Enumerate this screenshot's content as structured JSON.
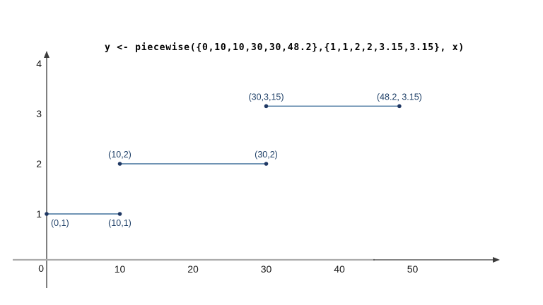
{
  "chart_data": {
    "type": "line",
    "subtype": "piecewise-constant-segments",
    "title": "y <- piecewise({0,10,10,30,30,48.2},{1,1,2,2,3.15,3.15}, x)",
    "xlabel": "",
    "ylabel": "",
    "xlim": [
      0,
      62
    ],
    "ylim": [
      0,
      4.3
    ],
    "grid": false,
    "legend": "none",
    "x_ticks": [
      0,
      10,
      20,
      30,
      40,
      50
    ],
    "y_ticks": [
      1,
      2,
      3,
      4
    ],
    "origin_tick_label": "0",
    "series": [
      {
        "name": "segment-1",
        "x": [
          0,
          10
        ],
        "y": [
          1,
          1
        ],
        "point_labels": [
          "(0,1)",
          "(10,1)"
        ],
        "label_position": "below"
      },
      {
        "name": "segment-2",
        "x": [
          10,
          30
        ],
        "y": [
          2,
          2
        ],
        "point_labels": [
          "(10,2)",
          "(30,2)"
        ],
        "label_position": "above"
      },
      {
        "name": "segment-3",
        "x": [
          30,
          48.2
        ],
        "y": [
          3.15,
          3.15
        ],
        "point_labels": [
          "(30,3,15)",
          "(48.2, 3.15)"
        ],
        "label_position": "above"
      }
    ],
    "colors": {
      "line": "#41719c",
      "point": "#1f3864",
      "point_label": "#1f4068",
      "axis_dark": "#3c3c3c",
      "axis_gray": "#ababab",
      "tick_label": "#1a1a1a",
      "title": "#000000"
    }
  }
}
